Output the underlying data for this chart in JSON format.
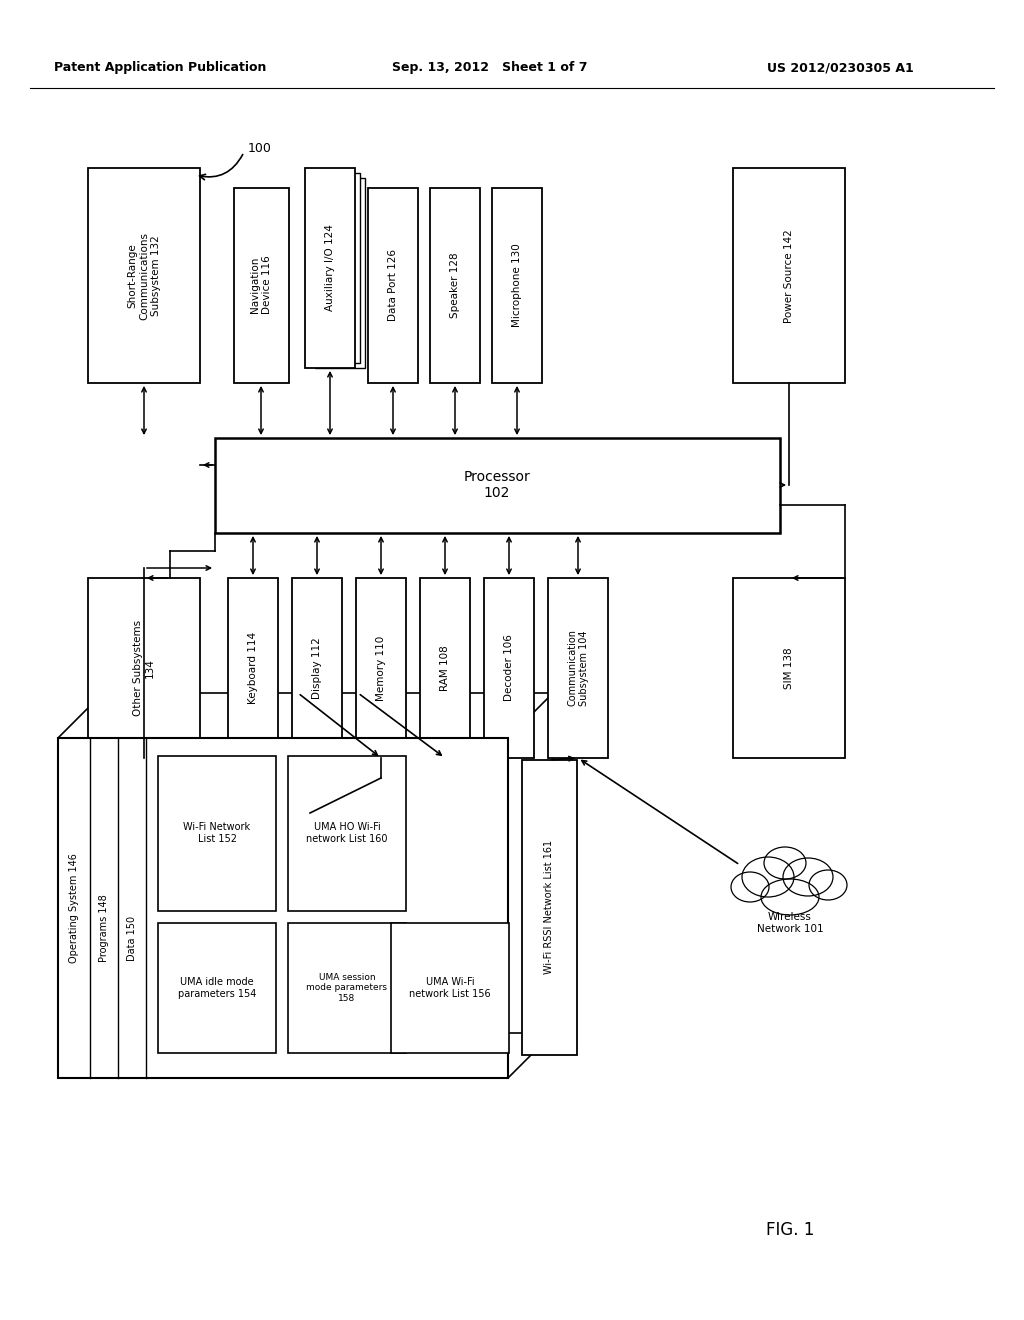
{
  "bg": "#ffffff",
  "lc": "#000000",
  "header_left": "Patent Application Publication",
  "header_mid": "Sep. 13, 2012   Sheet 1 of 7",
  "header_right": "US 2012/0230305 A1"
}
